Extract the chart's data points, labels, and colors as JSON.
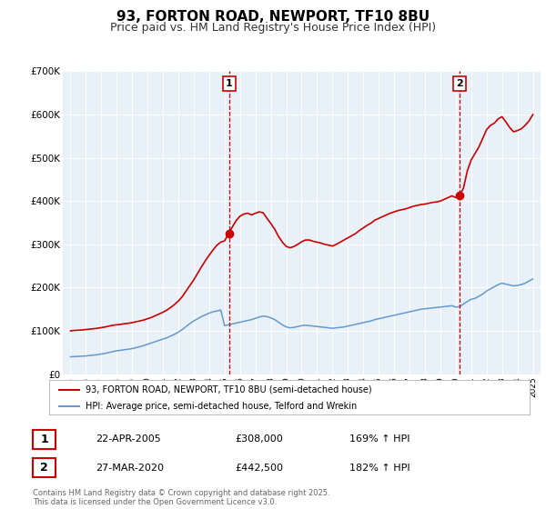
{
  "title": "93, FORTON ROAD, NEWPORT, TF10 8BU",
  "subtitle": "Price paid vs. HM Land Registry's House Price Index (HPI)",
  "title_fontsize": 11,
  "subtitle_fontsize": 9,
  "background_color": "#ffffff",
  "plot_bg_color": "#e8f0f8",
  "grid_color": "#ffffff",
  "red_line_color": "#cc0000",
  "blue_line_color": "#6699cc",
  "annotation_vline_color": "#cc0000",
  "legend_label_red": "93, FORTON ROAD, NEWPORT, TF10 8BU (semi-detached house)",
  "legend_label_blue": "HPI: Average price, semi-detached house, Telford and Wrekin",
  "purchase1_date": "22-APR-2005",
  "purchase1_price": 308000,
  "purchase1_pct": "169%",
  "purchase1_label": "1",
  "purchase1_year": 2005.3,
  "purchase2_date": "27-MAR-2020",
  "purchase2_price": 442500,
  "purchase2_pct": "182%",
  "purchase2_label": "2",
  "purchase2_year": 2020.24,
  "footer_text": "Contains HM Land Registry data © Crown copyright and database right 2025.\nThis data is licensed under the Open Government Licence v3.0.",
  "ylim": [
    0,
    700000
  ],
  "ytick_values": [
    0,
    100000,
    200000,
    300000,
    400000,
    500000,
    600000,
    700000
  ],
  "ytick_labels": [
    "£0",
    "£100K",
    "£200K",
    "£300K",
    "£400K",
    "£500K",
    "£600K",
    "£700K"
  ],
  "xlim_start": 1994.5,
  "xlim_end": 2025.5,
  "hpi_years": [
    1995.0,
    1995.25,
    1995.5,
    1995.75,
    1996.0,
    1996.25,
    1996.5,
    1996.75,
    1997.0,
    1997.25,
    1997.5,
    1997.75,
    1998.0,
    1998.25,
    1998.5,
    1998.75,
    1999.0,
    1999.25,
    1999.5,
    1999.75,
    2000.0,
    2000.25,
    2000.5,
    2000.75,
    2001.0,
    2001.25,
    2001.5,
    2001.75,
    2002.0,
    2002.25,
    2002.5,
    2002.75,
    2003.0,
    2003.25,
    2003.5,
    2003.75,
    2004.0,
    2004.25,
    2004.5,
    2004.75,
    2005.0,
    2005.25,
    2005.5,
    2005.75,
    2006.0,
    2006.25,
    2006.5,
    2006.75,
    2007.0,
    2007.25,
    2007.5,
    2007.75,
    2008.0,
    2008.25,
    2008.5,
    2008.75,
    2009.0,
    2009.25,
    2009.5,
    2009.75,
    2010.0,
    2010.25,
    2010.5,
    2010.75,
    2011.0,
    2011.25,
    2011.5,
    2011.75,
    2012.0,
    2012.25,
    2012.5,
    2012.75,
    2013.0,
    2013.25,
    2013.5,
    2013.75,
    2014.0,
    2014.25,
    2014.5,
    2014.75,
    2015.0,
    2015.25,
    2015.5,
    2015.75,
    2016.0,
    2016.25,
    2016.5,
    2016.75,
    2017.0,
    2017.25,
    2017.5,
    2017.75,
    2018.0,
    2018.25,
    2018.5,
    2018.75,
    2019.0,
    2019.25,
    2019.5,
    2019.75,
    2020.0,
    2020.25,
    2020.5,
    2020.75,
    2021.0,
    2021.25,
    2021.5,
    2021.75,
    2022.0,
    2022.25,
    2022.5,
    2022.75,
    2023.0,
    2023.25,
    2023.5,
    2023.75,
    2024.0,
    2024.25,
    2024.5,
    2024.75,
    2025.0
  ],
  "hpi_values": [
    40000,
    40500,
    41000,
    41500,
    42000,
    43000,
    44000,
    45000,
    46500,
    48000,
    50000,
    52000,
    54000,
    55000,
    56500,
    57500,
    59000,
    61000,
    63500,
    66000,
    69000,
    72000,
    75000,
    78000,
    81000,
    84000,
    88000,
    92000,
    97000,
    103000,
    110000,
    117000,
    123000,
    128000,
    133000,
    137000,
    141000,
    144000,
    146000,
    148000,
    112000,
    114000,
    116000,
    118000,
    120000,
    122000,
    124000,
    126000,
    129000,
    132000,
    134000,
    133000,
    130000,
    126000,
    120000,
    114000,
    109000,
    107000,
    108000,
    110000,
    112000,
    113000,
    112000,
    111000,
    110000,
    109000,
    108000,
    107000,
    106000,
    107000,
    108000,
    109000,
    111000,
    113000,
    115000,
    117000,
    119000,
    121000,
    123000,
    126000,
    128000,
    130000,
    132000,
    134000,
    136000,
    138000,
    140000,
    142000,
    144000,
    146000,
    148000,
    150000,
    151000,
    152000,
    153000,
    154000,
    155000,
    156000,
    157000,
    158000,
    155000,
    156000,
    162000,
    168000,
    173000,
    175000,
    180000,
    185000,
    192000,
    197000,
    202000,
    207000,
    210000,
    208000,
    206000,
    204000,
    205000,
    207000,
    210000,
    215000,
    220000
  ],
  "red_years": [
    1995.0,
    1995.25,
    1995.5,
    1995.75,
    1996.0,
    1996.25,
    1996.5,
    1996.75,
    1997.0,
    1997.25,
    1997.5,
    1997.75,
    1998.0,
    1998.25,
    1998.5,
    1998.75,
    1999.0,
    1999.25,
    1999.5,
    1999.75,
    2000.0,
    2000.25,
    2000.5,
    2000.75,
    2001.0,
    2001.25,
    2001.5,
    2001.75,
    2002.0,
    2002.25,
    2002.5,
    2002.75,
    2003.0,
    2003.25,
    2003.5,
    2003.75,
    2004.0,
    2004.25,
    2004.5,
    2004.75,
    2005.0,
    2005.25,
    2005.5,
    2005.75,
    2006.0,
    2006.25,
    2006.5,
    2006.75,
    2007.0,
    2007.25,
    2007.5,
    2007.75,
    2008.0,
    2008.25,
    2008.5,
    2008.75,
    2009.0,
    2009.25,
    2009.5,
    2009.75,
    2010.0,
    2010.25,
    2010.5,
    2010.75,
    2011.0,
    2011.25,
    2011.5,
    2011.75,
    2012.0,
    2012.25,
    2012.5,
    2012.75,
    2013.0,
    2013.25,
    2013.5,
    2013.75,
    2014.0,
    2014.25,
    2014.5,
    2014.75,
    2015.0,
    2015.25,
    2015.5,
    2015.75,
    2016.0,
    2016.25,
    2016.5,
    2016.75,
    2017.0,
    2017.25,
    2017.5,
    2017.75,
    2018.0,
    2018.25,
    2018.5,
    2018.75,
    2019.0,
    2019.25,
    2019.5,
    2019.75,
    2020.0,
    2020.25,
    2020.5,
    2020.75,
    2021.0,
    2021.25,
    2021.5,
    2021.75,
    2022.0,
    2022.25,
    2022.5,
    2022.75,
    2023.0,
    2023.25,
    2023.5,
    2023.75,
    2024.0,
    2024.25,
    2024.5,
    2024.75,
    2025.0
  ],
  "red_values": [
    100000,
    101000,
    101500,
    102000,
    103000,
    104000,
    105000,
    106000,
    107500,
    109000,
    111000,
    113000,
    114000,
    115000,
    116500,
    117500,
    119000,
    121000,
    123000,
    125000,
    128000,
    131000,
    135000,
    139000,
    143000,
    148000,
    154000,
    161000,
    169000,
    179000,
    192000,
    205000,
    218000,
    233000,
    248000,
    262000,
    275000,
    287000,
    298000,
    305000,
    308000,
    325000,
    340000,
    355000,
    365000,
    370000,
    372000,
    368000,
    372000,
    375000,
    373000,
    360000,
    348000,
    335000,
    318000,
    305000,
    295000,
    292000,
    295000,
    300000,
    306000,
    310000,
    310000,
    307000,
    305000,
    303000,
    300000,
    298000,
    296000,
    300000,
    305000,
    310000,
    315000,
    320000,
    325000,
    332000,
    338000,
    344000,
    349000,
    356000,
    360000,
    364000,
    368000,
    372000,
    375000,
    378000,
    380000,
    382000,
    385000,
    388000,
    390000,
    392000,
    393000,
    395000,
    397000,
    398000,
    400000,
    404000,
    408000,
    412000,
    408000,
    413000,
    430000,
    470000,
    495000,
    510000,
    525000,
    545000,
    565000,
    575000,
    580000,
    590000,
    595000,
    583000,
    570000,
    560000,
    563000,
    567000,
    575000,
    585000,
    600000
  ]
}
